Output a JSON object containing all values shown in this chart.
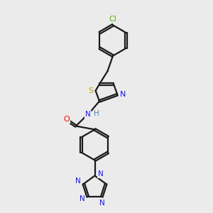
{
  "bg_color": "#ebebeb",
  "bond_color": "#1a1a1a",
  "cl_color": "#5db800",
  "s_color": "#c8a000",
  "n_color": "#1414ff",
  "o_color": "#ff0000",
  "h_color": "#4682b4",
  "line_width": 1.6,
  "doffset": 0.05,
  "fig_width": 3.0,
  "fig_height": 3.0,
  "dpi": 100,
  "xlim": [
    0,
    10
  ],
  "ylim": [
    0,
    10
  ]
}
